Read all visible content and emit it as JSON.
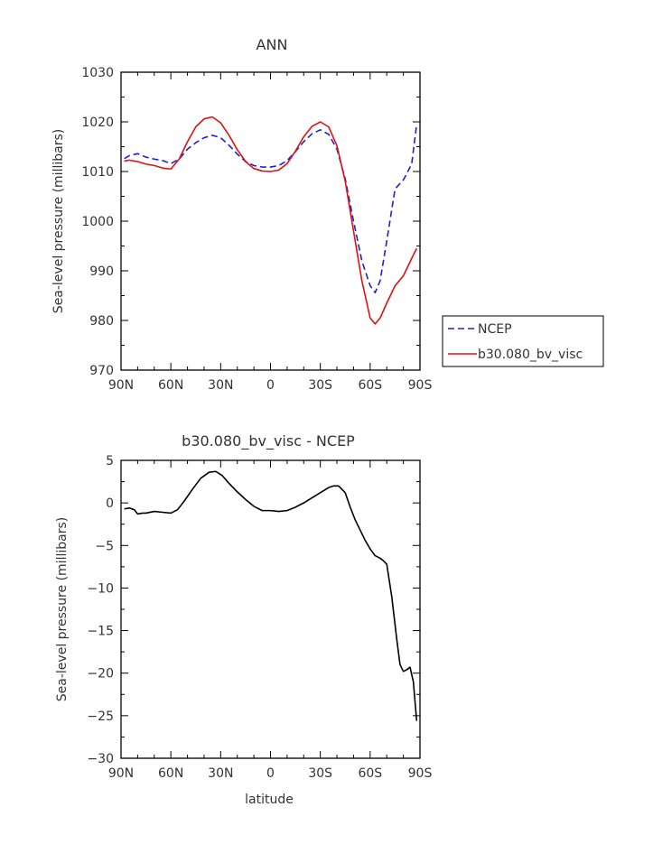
{
  "chart_data": [
    {
      "type": "line",
      "title": "ANN",
      "xlabel": "",
      "ylabel": "Sea-level pressure (millibars)",
      "xlim": [
        -90,
        90
      ],
      "ylim": [
        970,
        1030
      ],
      "xticks": [
        -90,
        -60,
        -30,
        0,
        30,
        60,
        90
      ],
      "xtick_labels": [
        "90N",
        "60N",
        "30N",
        "0",
        "30S",
        "60S",
        "90S"
      ],
      "yticks": [
        970,
        980,
        990,
        1000,
        1010,
        1020,
        1030
      ],
      "ytick_labels": [
        "970",
        "980",
        "990",
        "1000",
        "1010",
        "1020",
        "1030"
      ],
      "legend": "right",
      "series": [
        {
          "name": "NCEP",
          "color": "#2020d0",
          "dash": "dashed",
          "x": [
            -88,
            -85,
            -80,
            -75,
            -70,
            -65,
            -60,
            -55,
            -50,
            -45,
            -40,
            -35,
            -30,
            -25,
            -20,
            -15,
            -10,
            -5,
            0,
            5,
            10,
            15,
            20,
            25,
            30,
            35,
            40,
            45,
            50,
            55,
            60,
            63,
            66,
            70,
            75,
            80,
            85,
            88
          ],
          "y": [
            1012.6,
            1013.2,
            1013.6,
            1012.9,
            1012.5,
            1012.2,
            1011.6,
            1012.5,
            1014.5,
            1015.8,
            1016.8,
            1017.3,
            1016.8,
            1015.3,
            1013.5,
            1012.0,
            1011.2,
            1010.9,
            1010.9,
            1011.2,
            1012.2,
            1014.0,
            1016.0,
            1017.6,
            1018.4,
            1017.5,
            1014.5,
            1008.5,
            1000.0,
            992.0,
            987.0,
            985.6,
            988.0,
            996.0,
            1006.5,
            1008.3,
            1011.5,
            1019.5
          ]
        },
        {
          "name": "b30.080_bv_visc",
          "color": "#e01010",
          "dash": "solid",
          "x": [
            -88,
            -85,
            -80,
            -75,
            -70,
            -65,
            -60,
            -55,
            -50,
            -45,
            -40,
            -35,
            -30,
            -25,
            -20,
            -15,
            -10,
            -5,
            0,
            5,
            10,
            15,
            20,
            25,
            30,
            35,
            40,
            45,
            50,
            55,
            60,
            63,
            66,
            70,
            75,
            80,
            85,
            88
          ],
          "y": [
            1012.1,
            1012.3,
            1012.0,
            1011.5,
            1011.2,
            1010.7,
            1010.5,
            1012.5,
            1016.0,
            1019.0,
            1020.6,
            1021.0,
            1019.8,
            1017.3,
            1014.4,
            1012.0,
            1010.6,
            1010.1,
            1010.0,
            1010.3,
            1011.6,
            1014.1,
            1017.0,
            1019.1,
            1020.0,
            1019.0,
            1015.2,
            1008.0,
            998.0,
            988.0,
            980.5,
            979.3,
            980.5,
            983.5,
            987.0,
            989.0,
            992.5,
            994.5
          ]
        }
      ]
    },
    {
      "type": "line",
      "title": "b30.080_bv_visc - NCEP",
      "xlabel": "latitude",
      "ylabel": "Sea-level pressure (millibars)",
      "xlim": [
        -90,
        90
      ],
      "ylim": [
        -30,
        5
      ],
      "xticks": [
        -90,
        -60,
        -30,
        0,
        30,
        60,
        90
      ],
      "xtick_labels": [
        "90N",
        "60N",
        "30N",
        "0",
        "30S",
        "60S",
        "90S"
      ],
      "yticks": [
        -30,
        -25,
        -20,
        -15,
        -10,
        -5,
        0,
        5
      ],
      "ytick_labels": [
        "−30",
        "−25",
        "−20",
        "−15",
        "−10",
        "−5",
        "0",
        "5"
      ],
      "series": [
        {
          "color": "#000000",
          "dash": "solid",
          "x": [
            -88,
            -85,
            -82,
            -80,
            -77,
            -75,
            -70,
            -65,
            -60,
            -56,
            -52,
            -47,
            -42,
            -37,
            -33,
            -29,
            -25,
            -20,
            -15,
            -10,
            -5,
            0,
            5,
            10,
            15,
            20,
            25,
            30,
            35,
            38,
            41,
            45,
            48,
            51,
            54,
            57,
            60,
            63,
            66,
            68,
            70,
            73,
            76,
            78,
            80,
            82,
            84,
            86,
            88
          ],
          "y": [
            -0.7,
            -0.6,
            -0.8,
            -1.3,
            -1.2,
            -1.2,
            -1.0,
            -1.1,
            -1.2,
            -0.8,
            0.2,
            1.6,
            2.9,
            3.6,
            3.7,
            3.2,
            2.3,
            1.3,
            0.4,
            -0.4,
            -0.9,
            -0.9,
            -1.0,
            -0.9,
            -0.5,
            0.0,
            0.6,
            1.2,
            1.8,
            2.0,
            2.0,
            1.2,
            -0.5,
            -2.0,
            -3.2,
            -4.4,
            -5.4,
            -6.2,
            -6.5,
            -6.8,
            -7.2,
            -11.0,
            -16.0,
            -19.0,
            -19.8,
            -19.6,
            -19.3,
            -21.0,
            -25.6
          ]
        }
      ]
    }
  ]
}
